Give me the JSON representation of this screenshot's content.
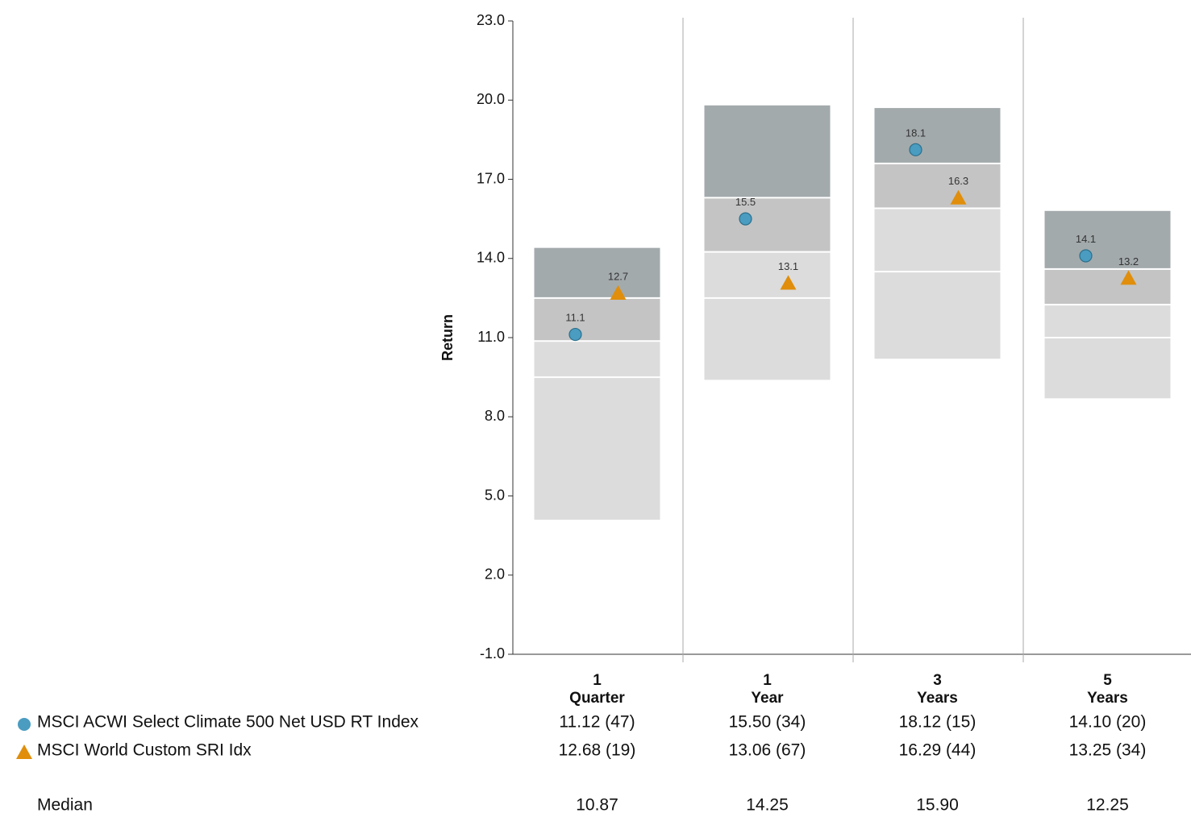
{
  "chart_data": {
    "type": "floating_range",
    "y_label": "Return",
    "categories": [
      [
        "1",
        "Quarter"
      ],
      [
        "1",
        "Year"
      ],
      [
        "3",
        "Years"
      ],
      [
        "5",
        "Years"
      ]
    ],
    "percentiles": [
      [
        14.4,
        12.5,
        10.87,
        9.5,
        4.1
      ],
      [
        19.8,
        16.3,
        14.25,
        12.5,
        9.4
      ],
      [
        19.7,
        17.6,
        15.9,
        13.5,
        10.2
      ],
      [
        15.8,
        13.6,
        12.25,
        11.0,
        8.7
      ]
    ],
    "band_colors": [
      "#a3aaac",
      "#c4c4c4",
      "#dcdcdc",
      "#dcdcdc"
    ],
    "series": [
      {
        "name": "MSCI ACWI Select Climate 500 Net USD RT Index",
        "marker": "circle",
        "color": "#4a9cc0",
        "values": [
          11.12,
          15.5,
          18.12,
          14.1
        ],
        "value_labels": [
          "11.1",
          "15.5",
          "18.1",
          "14.1"
        ],
        "table": [
          "11.12 (47)",
          "15.50 (34)",
          "18.12 (15)",
          "14.10 (20)"
        ]
      },
      {
        "name": "MSCI World Custom SRI Idx",
        "marker": "triangle",
        "color": "#e08e0b",
        "values": [
          12.68,
          13.06,
          16.29,
          13.25
        ],
        "value_labels": [
          "12.7",
          "13.1",
          "16.3",
          "13.2"
        ],
        "table": [
          "12.68 (19)",
          "13.06 (67)",
          "16.29 (44)",
          "13.25 (34)"
        ]
      }
    ],
    "median_row": {
      "label": "Median",
      "values": [
        "10.87",
        "14.25",
        "15.90",
        "12.25"
      ]
    },
    "ylim": [
      -1,
      23
    ],
    "yticks": [
      {
        "value": -1,
        "label": "-1.0"
      },
      {
        "value": 2,
        "label": "2.0"
      },
      {
        "value": 5,
        "label": "5.0"
      },
      {
        "value": 8,
        "label": "8.0"
      },
      {
        "value": 11,
        "label": "11.0"
      },
      {
        "value": 14,
        "label": "14.0"
      },
      {
        "value": 17,
        "label": "17.0"
      },
      {
        "value": 20,
        "label": "20.0"
      },
      {
        "value": 23,
        "label": "23.0"
      }
    ]
  }
}
